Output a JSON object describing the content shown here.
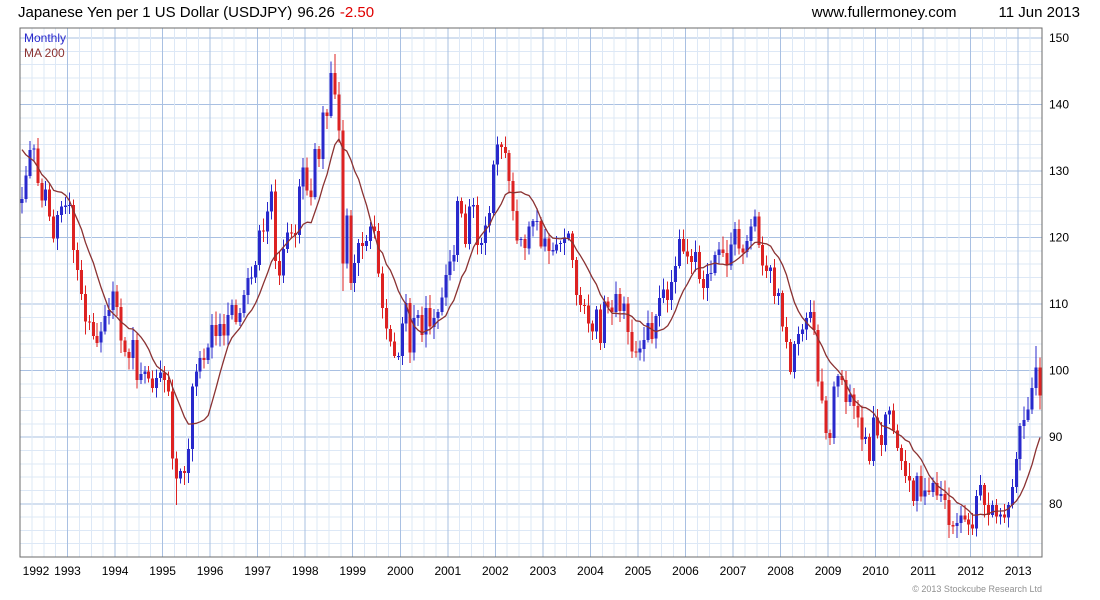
{
  "header": {
    "title": "Japanese Yen per 1 US Dollar (USDJPY)",
    "price": "96.26",
    "change": "-2.50",
    "site": "www.fullermoney.com",
    "date": "11 Jun 2013"
  },
  "legend": {
    "interval": "Monthly",
    "ma": "MA 200"
  },
  "footer": {
    "copyright": "© 2013 Stockcube Research Ltd"
  },
  "colors": {
    "up": "#2929cc",
    "down": "#dd2222",
    "ma": "#8b3232",
    "change": "#e00000",
    "grid_major": "#a9c0e2",
    "grid_minor": "#dde8f6",
    "border": "#6b6b6b"
  },
  "chart_data": {
    "type": "candlestick",
    "title": "Japanese Yen per 1 US Dollar (USDJPY) 96.26 -2.50",
    "interval": "Monthly",
    "overlay": "MA 200",
    "start": "1992-01",
    "end": "2013-06",
    "xlabel": "",
    "ylabel": "",
    "grid": true,
    "legend_position": "top-left",
    "yticks": [
      80,
      90,
      100,
      110,
      120,
      130,
      140,
      150
    ],
    "y_render": [
      72,
      151.5
    ],
    "x_years": [
      1992,
      1993,
      1994,
      1995,
      1996,
      1997,
      1998,
      1999,
      2000,
      2001,
      2002,
      2003,
      2004,
      2005,
      2006,
      2007,
      2008,
      2009,
      2010,
      2011,
      2012,
      2013
    ],
    "ma_window": 10,
    "pre_closes": [
      131.4,
      133.3,
      140.5,
      137.1,
      138.0,
      137.9,
      137.3,
      136.8,
      132.9,
      131.1,
      130.1,
      125.2
    ],
    "closes": [
      125.8,
      129.3,
      133.2,
      133.4,
      128.2,
      125.6,
      127.2,
      123.2,
      119.9,
      123.4,
      124.7,
      124.8,
      124.9,
      118.1,
      115.1,
      111.5,
      107.4,
      107.3,
      105.2,
      104.2,
      105.9,
      108.2,
      109.1,
      111.9,
      109.6,
      104.5,
      102.8,
      101.9,
      104.6,
      98.6,
      99.5,
      99.9,
      98.8,
      97.4,
      98.9,
      99.7,
      98.6,
      96.9,
      86.8,
      83.8,
      84.9,
      84.6,
      88.2,
      97.6,
      99.9,
      101.9,
      101.6,
      103.5,
      106.9,
      105.2,
      107.0,
      105.3,
      108.4,
      109.9,
      107.3,
      108.7,
      111.4,
      113.9,
      114.0,
      115.9,
      121.1,
      120.9,
      123.9,
      126.9,
      116.5,
      114.3,
      118.3,
      120.8,
      120.7,
      120.4,
      127.7,
      130.5,
      127.1,
      126.1,
      133.3,
      131.8,
      138.8,
      138.3,
      144.7,
      141.5,
      136.1,
      116.1,
      123.3,
      113.2,
      116.2,
      119.2,
      118.7,
      119.5,
      121.7,
      121.0,
      114.6,
      109.4,
      106.3,
      104.4,
      102.2,
      102.2,
      107.1,
      110.2,
      102.7,
      107.9,
      108.4,
      105.4,
      109.4,
      106.6,
      107.9,
      108.8,
      111.0,
      114.4,
      116.4,
      117.4,
      125.5,
      123.6,
      119.0,
      124.7,
      124.9,
      118.9,
      119.2,
      121.8,
      123.7,
      131.0,
      134.0,
      133.6,
      132.7,
      128.5,
      124.0,
      119.6,
      119.8,
      118.4,
      121.7,
      122.5,
      122.5,
      118.7,
      119.9,
      118.0,
      118.1,
      119.0,
      119.2,
      119.9,
      120.6,
      116.6,
      111.4,
      109.9,
      109.8,
      107.1,
      105.9,
      109.2,
      104.2,
      110.4,
      109.5,
      108.8,
      111.5,
      109.0,
      110.1,
      105.8,
      102.9,
      102.7,
      103.3,
      104.6,
      107.2,
      104.8,
      108.2,
      110.9,
      112.2,
      110.6,
      113.3,
      115.7,
      119.8,
      117.9,
      117.2,
      116.3,
      117.8,
      113.8,
      112.4,
      114.5,
      114.7,
      117.4,
      118.2,
      117.7,
      115.8,
      119.0,
      121.3,
      118.4,
      117.8,
      119.5,
      121.7,
      123.2,
      118.9,
      115.8,
      115.0,
      115.5,
      111.2,
      111.7,
      106.6,
      104.3,
      99.8,
      104.0,
      105.5,
      106.2,
      107.9,
      108.8,
      106.1,
      98.4,
      95.5,
      90.6,
      89.9,
      97.6,
      99.2,
      98.6,
      95.3,
      96.4,
      94.7,
      93.0,
      89.7,
      90.0,
      86.4,
      93.0,
      90.3,
      88.8,
      93.4,
      94.0,
      91.0,
      88.4,
      86.4,
      84.2,
      83.5,
      80.4,
      84.2,
      81.1,
      82.0,
      81.8,
      83.1,
      81.2,
      81.5,
      80.6,
      76.8,
      76.7,
      77.1,
      78.2,
      77.6,
      76.9,
      76.3,
      81.2,
      82.8,
      79.8,
      78.3,
      79.8,
      78.1,
      78.4,
      77.9,
      79.8,
      82.5,
      86.7,
      91.7,
      92.6,
      94.2,
      97.4,
      100.5,
      96.3
    ],
    "extremes": {
      "39": {
        "low": 79.8
      },
      "79": {
        "high": 147.6
      },
      "81": {
        "low": 112.0
      },
      "120": {
        "high": 135.2
      },
      "185": {
        "high": 124.2
      },
      "237": {
        "low": 75.6
      },
      "256": {
        "high": 103.7
      },
      "257": {
        "low": 94.2
      }
    }
  }
}
